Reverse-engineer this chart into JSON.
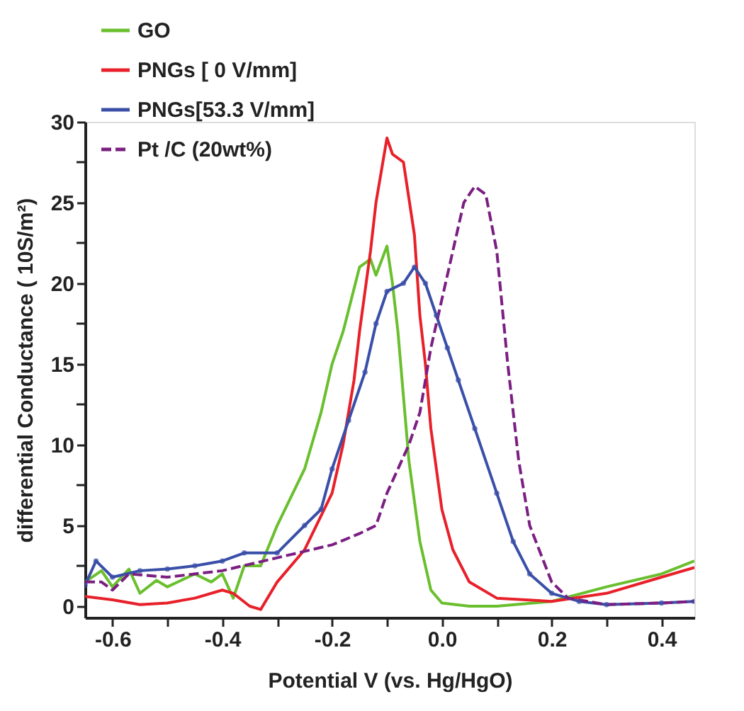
{
  "chart_data": {
    "type": "line",
    "xlabel": "Potential V (vs. Hg/HgO)",
    "ylabel": "differential Conductance ( 10S/m²)",
    "xlim": [
      -0.65,
      0.46
    ],
    "ylim": [
      -0.7,
      30
    ],
    "xticks": [
      -0.6,
      {
        "value": -0.5,
        "label": null
      },
      -0.4,
      {
        "value": -0.3,
        "label": null
      },
      -0.2,
      {
        "value": -0.1,
        "label": null
      },
      {
        "value": 0,
        "label": "0.0"
      },
      {
        "value": 0.1,
        "label": null
      },
      0.2,
      {
        "value": 0.3,
        "label": null
      },
      0.4
    ],
    "yticks": [
      0,
      {
        "value": 2.5,
        "label": null
      },
      5,
      {
        "value": 7.5,
        "label": null
      },
      10,
      {
        "value": 12.5,
        "label": null
      },
      15,
      {
        "value": 17.5,
        "label": null
      },
      20,
      {
        "value": 22.5,
        "label": null
      },
      25,
      {
        "value": 27.5,
        "label": null
      },
      30
    ],
    "grid": false,
    "legend": "top left",
    "series": [
      {
        "name": "GO",
        "color": "#6abf2e",
        "line_style": "solid",
        "marker": "none",
        "x": [
          -0.65,
          -0.62,
          -0.6,
          -0.57,
          -0.55,
          -0.52,
          -0.5,
          -0.45,
          -0.42,
          -0.4,
          -0.38,
          -0.36,
          -0.33,
          -0.3,
          -0.25,
          -0.22,
          -0.2,
          -0.18,
          -0.15,
          -0.13,
          -0.12,
          -0.1,
          -0.09,
          -0.08,
          -0.07,
          -0.06,
          -0.04,
          -0.02,
          0.0,
          0.05,
          0.1,
          0.2,
          0.3,
          0.4,
          0.46
        ],
        "values": [
          1.5,
          2.2,
          1.2,
          2.3,
          0.8,
          1.6,
          1.2,
          2.0,
          1.5,
          2.0,
          0.5,
          2.5,
          2.5,
          5,
          8.5,
          12,
          15,
          17,
          21,
          21.5,
          20.5,
          22.3,
          20,
          17,
          13,
          9,
          4,
          1,
          0.2,
          0,
          0,
          0.3,
          1.2,
          2,
          2.8
        ]
      },
      {
        "name": "PNGs [ 0 V/mm]",
        "color": "#e8202a",
        "line_style": "solid",
        "marker": "none",
        "x": [
          -0.65,
          -0.6,
          -0.55,
          -0.5,
          -0.45,
          -0.4,
          -0.38,
          -0.35,
          -0.33,
          -0.3,
          -0.25,
          -0.2,
          -0.18,
          -0.16,
          -0.15,
          -0.13,
          -0.12,
          -0.11,
          -0.1,
          -0.09,
          -0.07,
          -0.05,
          -0.04,
          -0.03,
          -0.02,
          0,
          0.02,
          0.05,
          0.1,
          0.2,
          0.3,
          0.4,
          0.46
        ],
        "values": [
          0.6,
          0.4,
          0.1,
          0.2,
          0.5,
          1.0,
          0.8,
          0,
          -0.2,
          1.5,
          3.5,
          7,
          10,
          14,
          17,
          22,
          25,
          27,
          29,
          28,
          27.5,
          23,
          18,
          15,
          11,
          6,
          3.5,
          1.5,
          0.5,
          0.3,
          0.8,
          1.8,
          2.4
        ]
      },
      {
        "name": "PNGs[53.3 V/mm]",
        "color": "#3a4fa8",
        "line_style": "solid",
        "marker": "circle",
        "x": [
          -0.65,
          -0.63,
          -0.6,
          -0.55,
          -0.5,
          -0.45,
          -0.4,
          -0.36,
          -0.3,
          -0.25,
          -0.22,
          -0.2,
          -0.17,
          -0.14,
          -0.12,
          -0.1,
          -0.07,
          -0.05,
          -0.03,
          -0.01,
          0.01,
          0.03,
          0.06,
          0.1,
          0.13,
          0.16,
          0.2,
          0.25,
          0.3,
          0.4,
          0.46
        ],
        "values": [
          1.3,
          2.8,
          1.8,
          2.2,
          2.3,
          2.5,
          2.8,
          3.3,
          3.3,
          5,
          6,
          8.5,
          11.5,
          14.5,
          17.5,
          19.5,
          20,
          21,
          20,
          18,
          16,
          14,
          11,
          7,
          4,
          2,
          0.8,
          0.3,
          0.1,
          0.2,
          0.3
        ]
      },
      {
        "name": "Pt /C (20wt%)",
        "color": "#7b1f82",
        "line_style": "dashed",
        "marker": "none",
        "x": [
          -0.65,
          -0.62,
          -0.6,
          -0.57,
          -0.5,
          -0.4,
          -0.3,
          -0.2,
          -0.15,
          -0.12,
          -0.1,
          -0.06,
          -0.04,
          -0.02,
          0,
          0.02,
          0.04,
          0.06,
          0.08,
          0.1,
          0.12,
          0.14,
          0.16,
          0.2,
          0.23,
          0.3,
          0.4,
          0.46
        ],
        "values": [
          1.5,
          1.5,
          1.0,
          2,
          1.8,
          2.2,
          3.0,
          3.8,
          4.5,
          5.0,
          7,
          10,
          12,
          16,
          19,
          22,
          25,
          26,
          25.5,
          22,
          15,
          9,
          5,
          1.5,
          0.5,
          0.1,
          0.2,
          0.3
        ]
      }
    ]
  }
}
